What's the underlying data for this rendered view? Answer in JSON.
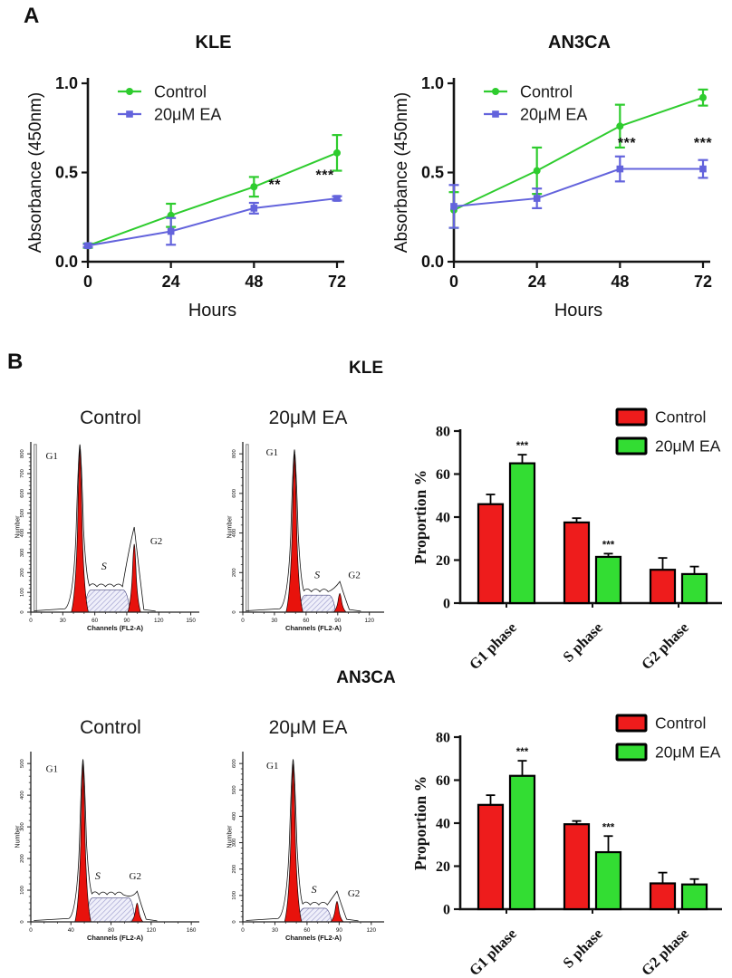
{
  "figure": {
    "panel_a": "A",
    "panel_b": "B",
    "kle": "KLE",
    "an3ca": "AN3CA"
  },
  "colors": {
    "line_green": "#2ECC2E",
    "line_blue": "#6363DC",
    "bar_red": "#EE1C1C",
    "bar_green": "#33DD33",
    "hist_red": "#E8120C",
    "hatch_bg": "#EFEFFA",
    "hatch_line": "#9A9ACC"
  },
  "chart_data": [
    {
      "id": "kle-growth",
      "type": "line",
      "title": "KLE",
      "xlabel": "Hours",
      "ylabel": "Absorbance (450nm)",
      "x": [
        0,
        24,
        48,
        72
      ],
      "xlim": [
        0,
        76
      ],
      "ylim": [
        0,
        1.0
      ],
      "x_tick_labels": [
        "0",
        "24",
        "48",
        "72"
      ],
      "y_tick_values": [
        0,
        0.5,
        1.0
      ],
      "y_tick_labels": [
        "0.0",
        "0.5",
        "1.0"
      ],
      "series": [
        {
          "name": "Control",
          "color": "#2ECC2E",
          "marker": "circle",
          "values": [
            0.09,
            0.26,
            0.42,
            0.61
          ],
          "errors": [
            0.012,
            0.065,
            0.055,
            0.1
          ]
        },
        {
          "name": "20μM EA",
          "color": "#6363DC",
          "marker": "square",
          "values": [
            0.09,
            0.17,
            0.3,
            0.355
          ],
          "errors": [
            0.008,
            0.075,
            0.03,
            0.012
          ]
        }
      ],
      "annotations": [
        {
          "text": "**",
          "x": 54,
          "y": 0.405
        },
        {
          "text": "***",
          "x": 68.5,
          "y": 0.46
        }
      ]
    },
    {
      "id": "an3ca-growth",
      "type": "line",
      "title": "AN3CA",
      "xlabel": "Hours",
      "ylabel": "Absorbance (450nm)",
      "x": [
        0,
        24,
        48,
        72
      ],
      "xlim": [
        0,
        76
      ],
      "ylim": [
        0,
        1.0
      ],
      "x_tick_labels": [
        "0",
        "24",
        "48",
        "72"
      ],
      "y_tick_values": [
        0,
        0.5,
        1.0
      ],
      "y_tick_labels": [
        "0.0",
        "0.5",
        "1.0"
      ],
      "series": [
        {
          "name": "Control",
          "color": "#2ECC2E",
          "marker": "circle",
          "values": [
            0.29,
            0.51,
            0.76,
            0.92
          ],
          "errors": [
            0.1,
            0.13,
            0.12,
            0.045
          ]
        },
        {
          "name": "20μM EA",
          "color": "#6363DC",
          "marker": "square",
          "values": [
            0.31,
            0.355,
            0.52,
            0.52
          ],
          "errors": [
            0.12,
            0.055,
            0.07,
            0.05
          ]
        }
      ],
      "annotations": [
        {
          "text": "***",
          "x": 50,
          "y": 0.64
        },
        {
          "text": "***",
          "x": 72,
          "y": 0.64
        }
      ]
    },
    {
      "id": "kle-flow-control",
      "type": "flow-histogram",
      "title": "Control",
      "xlabel": "Channels (FL2-A)",
      "ylabel": "Number",
      "x_ticks": [
        0,
        30,
        60,
        90,
        120,
        150
      ],
      "axis_max": 158,
      "y_ticks": [
        "0",
        "100",
        "200",
        "300",
        "400",
        "500",
        "600",
        "700",
        "800"
      ],
      "debris": true,
      "g1": {
        "channel": 46,
        "height": 0.96
      },
      "s": {
        "from": 50,
        "to": 93,
        "height": 0.13
      },
      "g2": {
        "channel": 97,
        "height": 0.4,
        "outline_extra": 0.1
      },
      "labels": {
        "g1": "G1",
        "s": "S",
        "g2": "G2"
      },
      "label_pos": {
        "g1": {
          "ch": 14,
          "f": 0.9
        },
        "s": {
          "ch": 66,
          "f": 0.25
        },
        "g2": {
          "ch": 112,
          "f": 0.4
        }
      }
    },
    {
      "id": "kle-flow-ea",
      "type": "flow-histogram",
      "title": "20μM EA",
      "xlabel": "Channels (FL2-A)",
      "ylabel": "Number",
      "x_ticks": [
        0,
        30,
        60,
        90,
        120
      ],
      "axis_max": 134,
      "y_ticks": [
        "0",
        "200",
        "400",
        "600",
        "800"
      ],
      "debris": true,
      "g1": {
        "channel": 49,
        "height": 0.93
      },
      "s": {
        "from": 53,
        "to": 88,
        "height": 0.1
      },
      "g2": {
        "channel": 92,
        "height": 0.11,
        "outline_extra": 0.07
      },
      "labels": {
        "g1": "G1",
        "s": "S",
        "g2": "G2"
      },
      "label_pos": {
        "g1": {
          "ch": 22,
          "f": 0.92
        },
        "s": {
          "ch": 68,
          "f": 0.2
        },
        "g2": {
          "ch": 100,
          "f": 0.2
        }
      }
    },
    {
      "id": "kle-cellcycle",
      "type": "bar",
      "ylabel": "Proportion %",
      "ylim": [
        0,
        80
      ],
      "y_ticks": [
        0,
        20,
        40,
        60,
        80
      ],
      "categories": [
        "G1 phase",
        "S phase",
        "G2 phase"
      ],
      "series": [
        {
          "name": "Control",
          "color": "#EE1C1C",
          "values": [
            46,
            37.5,
            15.5
          ],
          "errors": [
            4.5,
            2,
            5.5
          ]
        },
        {
          "name": "20μM EA",
          "color": "#33DD33",
          "values": [
            65,
            21.5,
            13.5
          ],
          "errors": [
            4,
            1.5,
            3.5
          ]
        }
      ],
      "significance": [
        {
          "category_index": 0,
          "series_index": 1,
          "text": "***"
        },
        {
          "category_index": 1,
          "series_index": 1,
          "text": "***"
        }
      ],
      "legend": [
        "Control",
        "20μM EA"
      ]
    },
    {
      "id": "an3ca-flow-control",
      "type": "flow-histogram",
      "title": "Control",
      "xlabel": "Channels (FL2-A)",
      "ylabel": "Number",
      "x_ticks": [
        0,
        40,
        80,
        120,
        160
      ],
      "axis_max": 168,
      "y_ticks": [
        "0",
        "100",
        "200",
        "300",
        "400",
        "500"
      ],
      "debris": false,
      "g1": {
        "channel": 52,
        "height": 0.93
      },
      "s": {
        "from": 55,
        "to": 104,
        "height": 0.14
      },
      "g2": {
        "channel": 106,
        "height": 0.11,
        "outline_extra": 0.07
      },
      "labels": {
        "g1": "G1",
        "s": "S",
        "g2": "G2"
      },
      "label_pos": {
        "g1": {
          "ch": 15,
          "f": 0.88
        },
        "s": {
          "ch": 64,
          "f": 0.25
        },
        "g2": {
          "ch": 98,
          "f": 0.25
        }
      }
    },
    {
      "id": "an3ca-flow-ea",
      "type": "flow-histogram",
      "title": "20μM EA",
      "xlabel": "Channels (FL2-A)",
      "ylabel": "Number",
      "x_ticks": [
        0,
        30,
        60,
        90,
        120
      ],
      "axis_max": 132,
      "y_ticks": [
        "0",
        "100",
        "200",
        "300",
        "400",
        "500",
        "600"
      ],
      "debris": false,
      "g1": {
        "channel": 47,
        "height": 0.93
      },
      "s": {
        "from": 51,
        "to": 83,
        "height": 0.08
      },
      "g2": {
        "channel": 88,
        "height": 0.12,
        "outline_extra": 0.06
      },
      "labels": {
        "g1": "G1",
        "s": "S",
        "g2": "G2"
      },
      "label_pos": {
        "g1": {
          "ch": 22,
          "f": 0.9
        },
        "s": {
          "ch": 64,
          "f": 0.17
        },
        "g2": {
          "ch": 98,
          "f": 0.15
        }
      }
    },
    {
      "id": "an3ca-cellcycle",
      "type": "bar",
      "ylabel": "Proportion %",
      "ylim": [
        0,
        80
      ],
      "y_ticks": [
        0,
        20,
        40,
        60,
        80
      ],
      "categories": [
        "G1 phase",
        "S phase",
        "G2 phase"
      ],
      "series": [
        {
          "name": "Control",
          "color": "#EE1C1C",
          "values": [
            48.5,
            39.5,
            12
          ],
          "errors": [
            4.5,
            1.5,
            5
          ]
        },
        {
          "name": "20μM EA",
          "color": "#33DD33",
          "values": [
            62,
            26.5,
            11.5
          ],
          "errors": [
            7,
            7.5,
            2.5
          ]
        }
      ],
      "significance": [
        {
          "category_index": 0,
          "series_index": 1,
          "text": "***"
        },
        {
          "category_index": 1,
          "series_index": 1,
          "text": "***"
        }
      ],
      "legend": [
        "Control",
        "20μM EA"
      ]
    }
  ]
}
